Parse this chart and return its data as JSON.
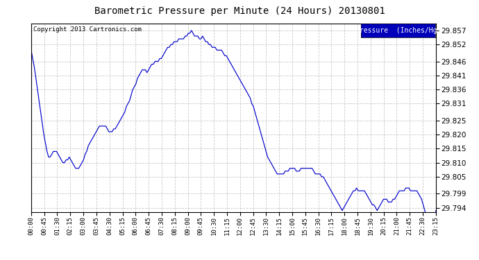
{
  "title": "Barometric Pressure per Minute (24 Hours) 20130801",
  "copyright": "Copyright 2013 Cartronics.com",
  "legend_label": "Pressure  (Inches/Hg)",
  "line_color": "#0000cc",
  "background_color": "#ffffff",
  "plot_bg_color": "#ffffff",
  "grid_color": "#bbbbbb",
  "ylim": [
    29.7925,
    29.8595
  ],
  "yticks": [
    29.794,
    29.799,
    29.805,
    29.81,
    29.815,
    29.82,
    29.825,
    29.831,
    29.836,
    29.841,
    29.846,
    29.852,
    29.857
  ],
  "x_tick_labels": [
    "00:00",
    "00:45",
    "01:30",
    "02:15",
    "03:00",
    "03:45",
    "04:30",
    "05:15",
    "06:00",
    "06:45",
    "07:30",
    "08:15",
    "09:00",
    "09:45",
    "10:30",
    "11:15",
    "12:00",
    "12:45",
    "13:30",
    "14:15",
    "15:00",
    "15:45",
    "16:30",
    "17:15",
    "18:00",
    "18:45",
    "19:30",
    "20:15",
    "21:00",
    "21:45",
    "22:30",
    "23:15"
  ],
  "pressure_data": [
    29.85,
    29.847,
    29.844,
    29.84,
    29.836,
    29.832,
    29.828,
    29.824,
    29.82,
    29.817,
    29.814,
    29.812,
    29.812,
    29.813,
    29.814,
    29.814,
    29.814,
    29.813,
    29.812,
    29.811,
    29.81,
    29.81,
    29.811,
    29.811,
    29.812,
    29.811,
    29.81,
    29.809,
    29.808,
    29.808,
    29.808,
    29.809,
    29.81,
    29.811,
    29.813,
    29.814,
    29.816,
    29.817,
    29.818,
    29.819,
    29.82,
    29.821,
    29.822,
    29.823,
    29.823,
    29.823,
    29.823,
    29.823,
    29.822,
    29.821,
    29.821,
    29.821,
    29.822,
    29.822,
    29.823,
    29.824,
    29.825,
    29.826,
    29.827,
    29.828,
    29.83,
    29.831,
    29.832,
    29.834,
    29.836,
    29.837,
    29.838,
    29.84,
    29.841,
    29.842,
    29.843,
    29.843,
    29.843,
    29.842,
    29.843,
    29.844,
    29.845,
    29.845,
    29.846,
    29.846,
    29.846,
    29.847,
    29.847,
    29.848,
    29.849,
    29.85,
    29.851,
    29.851,
    29.852,
    29.852,
    29.853,
    29.853,
    29.853,
    29.854,
    29.854,
    29.854,
    29.854,
    29.855,
    29.855,
    29.856,
    29.856,
    29.857,
    29.856,
    29.855,
    29.855,
    29.855,
    29.854,
    29.854,
    29.855,
    29.854,
    29.853,
    29.853,
    29.852,
    29.852,
    29.851,
    29.851,
    29.851,
    29.85,
    29.85,
    29.85,
    29.85,
    29.849,
    29.848,
    29.848,
    29.847,
    29.846,
    29.845,
    29.844,
    29.843,
    29.842,
    29.841,
    29.84,
    29.839,
    29.838,
    29.837,
    29.836,
    29.835,
    29.834,
    29.833,
    29.831,
    29.83,
    29.828,
    29.826,
    29.824,
    29.822,
    29.82,
    29.818,
    29.816,
    29.814,
    29.812,
    29.811,
    29.81,
    29.809,
    29.808,
    29.807,
    29.806,
    29.806,
    29.806,
    29.806,
    29.806,
    29.807,
    29.807,
    29.807,
    29.808,
    29.808,
    29.808,
    29.808,
    29.807,
    29.807,
    29.807,
    29.808,
    29.808,
    29.808,
    29.808,
    29.808,
    29.808,
    29.808,
    29.808,
    29.807,
    29.806,
    29.806,
    29.806,
    29.806,
    29.805,
    29.805,
    29.804,
    29.803,
    29.802,
    29.801,
    29.8,
    29.799,
    29.798,
    29.797,
    29.796,
    29.795,
    29.794,
    29.793,
    29.794,
    29.795,
    29.796,
    29.797,
    29.798,
    29.799,
    29.8,
    29.8,
    29.801,
    29.8,
    29.8,
    29.8,
    29.8,
    29.8,
    29.799,
    29.798,
    29.797,
    29.796,
    29.795,
    29.795,
    29.794,
    29.793,
    29.794,
    29.795,
    29.796,
    29.797,
    29.797,
    29.797,
    29.796,
    29.796,
    29.796,
    29.797,
    29.797,
    29.798,
    29.799,
    29.8,
    29.8,
    29.8,
    29.8,
    29.801,
    29.801,
    29.801,
    29.8,
    29.8,
    29.8,
    29.8,
    29.8,
    29.799,
    29.798,
    29.797,
    29.795,
    29.793,
    29.791,
    29.79,
    29.789,
    29.788,
    29.787,
    29.786,
    29.793
  ]
}
